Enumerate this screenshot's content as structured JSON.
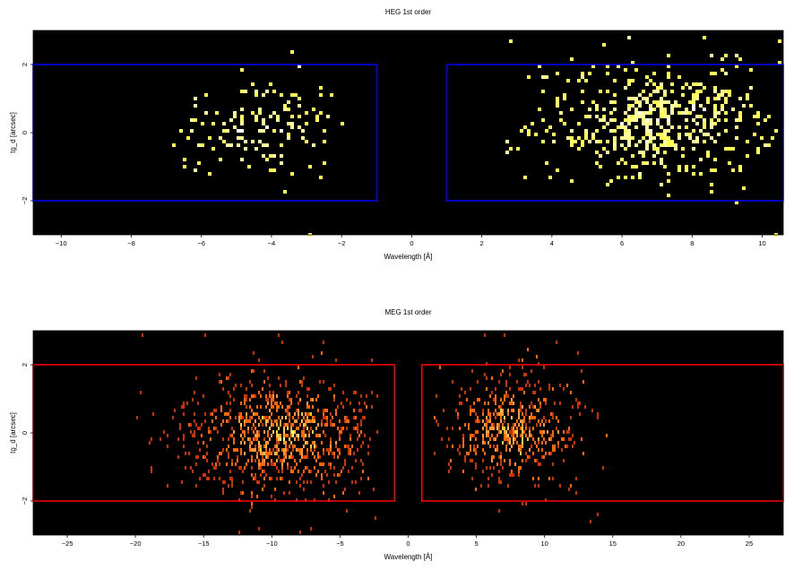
{
  "chart_data": [
    {
      "type": "heatmap",
      "title": "HEG 1st order",
      "xlabel": "Wavelength [Å]",
      "ylabel": "tg_d [arcsec]",
      "xlim": [
        -10.8,
        10.6
      ],
      "ylim": [
        -3.0,
        3.0
      ],
      "xticks": [
        -10,
        -8,
        -6,
        -4,
        -2,
        0,
        2,
        4,
        6,
        8,
        10
      ],
      "yticks": [
        -2,
        0,
        2
      ],
      "background": "#000000",
      "colormap": [
        "#ffff55",
        "#ffff99",
        "#ffffff"
      ],
      "regions": [
        {
          "x": [
            -10.8,
            -1.0
          ],
          "y": [
            -2.0,
            2.0
          ],
          "color": "#0000ff"
        },
        {
          "x": [
            1.0,
            10.6
          ],
          "y": [
            -2.0,
            2.0
          ],
          "color": "#0000ff"
        }
      ],
      "clusters": [
        {
          "center": [
            -4.4,
            0.2
          ],
          "spread": [
            1.3,
            0.75
          ],
          "xrange": [
            -6.9,
            -1.9
          ],
          "count": 150
        },
        {
          "center": [
            6.9,
            0.4
          ],
          "spread": [
            1.7,
            0.8
          ],
          "xrange": [
            2.1,
            10.6
          ],
          "count": 520
        }
      ],
      "outliers": [
        [
          -3.5,
          2.4
        ],
        [
          -3.0,
          -2.95
        ],
        [
          2.8,
          2.7
        ],
        [
          3.6,
          2.0
        ],
        [
          5.4,
          2.6
        ],
        [
          8.3,
          2.8
        ],
        [
          10.4,
          2.7
        ],
        [
          10.3,
          -2.9
        ],
        [
          3.2,
          -1.3
        ],
        [
          5.7,
          1.6
        ]
      ]
    },
    {
      "type": "heatmap",
      "title": "MEG 1st order",
      "xlabel": "Wavelength [Å]",
      "ylabel": "tg_d [arcsec]",
      "xlim": [
        -27.5,
        27.5
      ],
      "ylim": [
        -3.0,
        3.0
      ],
      "xticks": [
        -25,
        -20,
        -15,
        -10,
        -5,
        0,
        5,
        10,
        15,
        20,
        25
      ],
      "yticks": [
        -2,
        0,
        2
      ],
      "background": "#000000",
      "colormap": [
        "#cc3300",
        "#ff6600",
        "#ff9933",
        "#ffcc33",
        "#ffff88"
      ],
      "regions": [
        {
          "x": [
            -27.5,
            -1.0
          ],
          "y": [
            -2.0,
            2.0
          ],
          "color": "#ff0000"
        },
        {
          "x": [
            1.0,
            27.5
          ],
          "y": [
            -2.0,
            2.0
          ],
          "color": "#ff0000"
        }
      ],
      "clusters": [
        {
          "center": [
            -9.3,
            0.0
          ],
          "spread": [
            3.6,
            0.85
          ],
          "xrange": [
            -19.8,
            -2.2
          ],
          "count": 900
        },
        {
          "center": [
            7.6,
            0.1
          ],
          "spread": [
            2.6,
            0.8
          ],
          "xrange": [
            1.8,
            15.2
          ],
          "count": 520
        }
      ],
      "outliers": [
        [
          -19.5,
          2.9
        ],
        [
          -15.0,
          2.9
        ],
        [
          -9.5,
          2.9
        ],
        [
          -9.3,
          2.7
        ],
        [
          -11.0,
          -2.8
        ],
        [
          -12.5,
          -2.9
        ],
        [
          -8.0,
          -2.9
        ],
        [
          5.5,
          2.9
        ],
        [
          7.0,
          2.9
        ],
        [
          10.8,
          2.7
        ],
        [
          13.3,
          -2.6
        ],
        [
          -20.0,
          0.5
        ],
        [
          -19.0,
          -0.2
        ],
        [
          -2.5,
          -2.4
        ]
      ]
    }
  ]
}
